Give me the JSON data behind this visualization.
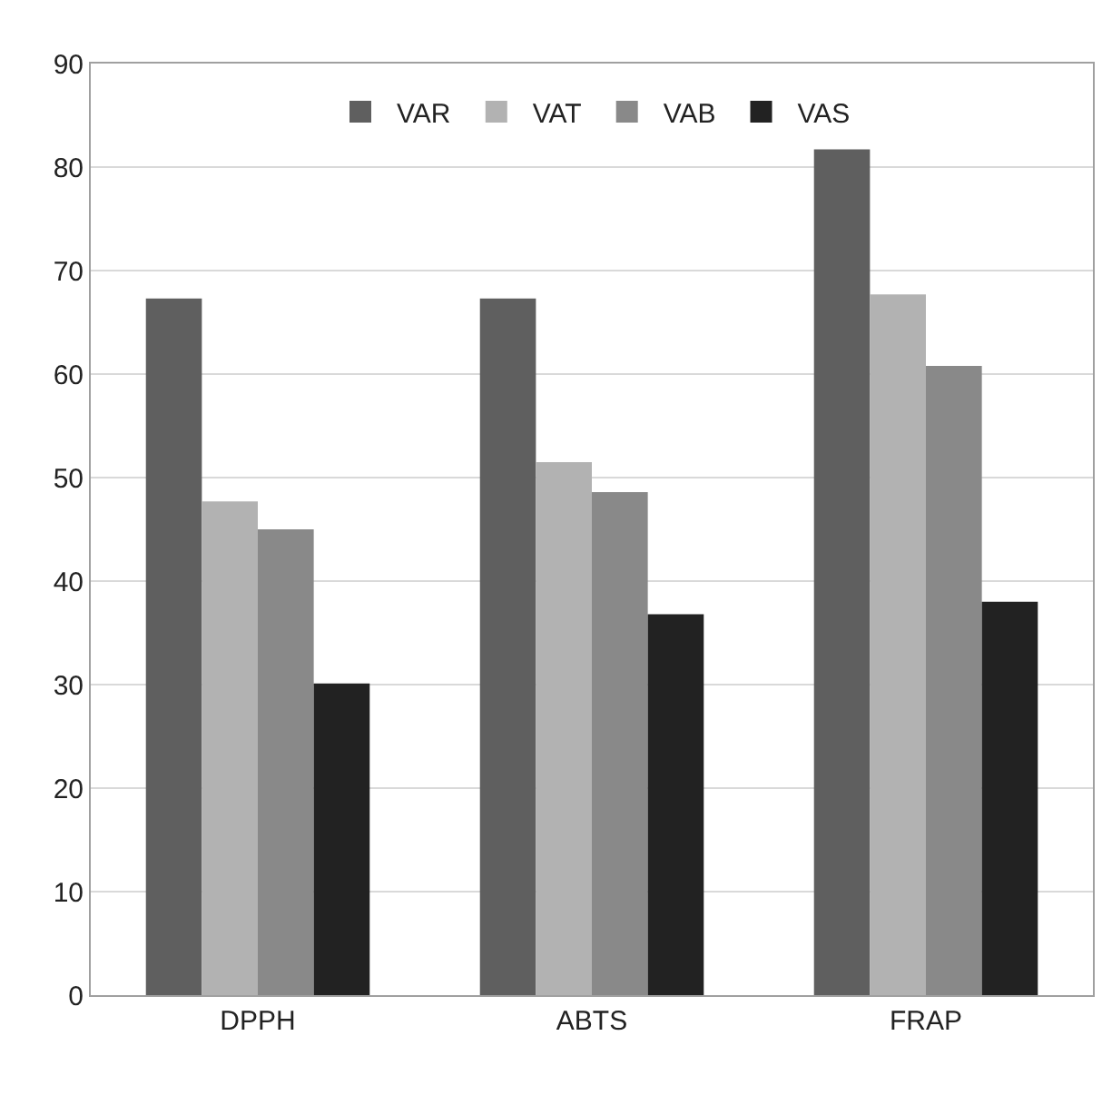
{
  "chart_data": {
    "type": "bar",
    "categories": [
      "DPPH",
      "ABTS",
      "FRAP"
    ],
    "series": [
      {
        "name": "VAR",
        "color": "#5f5f5f",
        "values": [
          67.3,
          67.3,
          81.7
        ]
      },
      {
        "name": "VAT",
        "color": "#b2b2b2",
        "values": [
          47.7,
          51.5,
          67.7
        ]
      },
      {
        "name": "VAB",
        "color": "#898989",
        "values": [
          45.0,
          48.6,
          60.8
        ]
      },
      {
        "name": "VAS",
        "color": "#222222",
        "values": [
          30.1,
          36.8,
          38.0
        ]
      }
    ],
    "ylim": [
      0,
      90
    ],
    "yticks": [
      0,
      10,
      20,
      30,
      40,
      50,
      60,
      70,
      80,
      90
    ],
    "grid": "y",
    "legend": "top"
  }
}
